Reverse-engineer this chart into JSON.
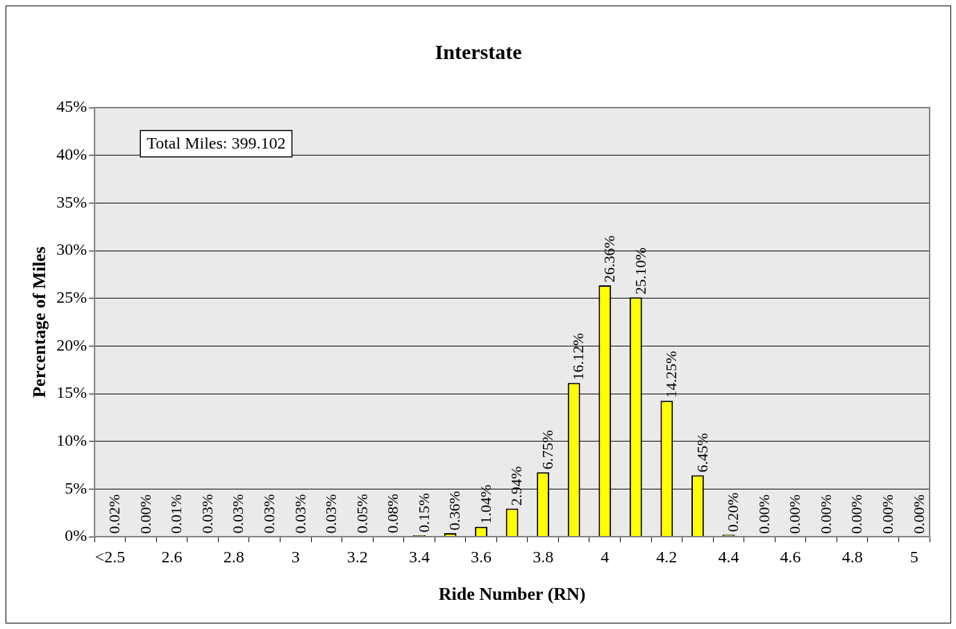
{
  "chart_data": {
    "type": "bar",
    "title": "Interstate",
    "xlabel": "Ride Number (RN)",
    "ylabel": "Percentage of Miles",
    "categories": [
      "<2.5",
      null,
      "2.6",
      null,
      "2.8",
      null,
      "3",
      null,
      "3.2",
      null,
      "3.4",
      null,
      "3.6",
      null,
      "3.8",
      null,
      "4",
      null,
      "4.2",
      null,
      "4.4",
      null,
      "4.6",
      null,
      "4.8",
      null,
      "5"
    ],
    "values": [
      0.02,
      0.0,
      0.01,
      0.03,
      0.03,
      0.03,
      0.03,
      0.03,
      0.05,
      0.08,
      0.15,
      0.36,
      1.04,
      2.94,
      6.75,
      16.12,
      26.36,
      25.1,
      14.25,
      6.45,
      0.2,
      0.0,
      0.0,
      0.0,
      0.0,
      0.0,
      0.0
    ],
    "value_labels": [
      "0.02%",
      "0.00%",
      "0.01%",
      "0.03%",
      "0.03%",
      "0.03%",
      "0.03%",
      "0.03%",
      "0.05%",
      "0.08%",
      "0.15%",
      "0.36%",
      "1.04%",
      "2.94%",
      "6.75%",
      "16.12%",
      "26.36%",
      "25.10%",
      "14.25%",
      "6.45%",
      "0.20%",
      "0.00%",
      "0.00%",
      "0.00%",
      "0.00%",
      "0.00%",
      "0.00%"
    ],
    "color": "#ffff00",
    "ylim": [
      0,
      45
    ],
    "yticks": [
      {
        "value": 0,
        "label": "0%"
      },
      {
        "value": 5,
        "label": "5%"
      },
      {
        "value": 10,
        "label": "10%"
      },
      {
        "value": 15,
        "label": "15%"
      },
      {
        "value": 20,
        "label": "20%"
      },
      {
        "value": 25,
        "label": "25%"
      },
      {
        "value": 30,
        "label": "30%"
      },
      {
        "value": 35,
        "label": "35%"
      },
      {
        "value": 40,
        "label": "40%"
      },
      {
        "value": 45,
        "label": "45%"
      }
    ],
    "grid": "y",
    "legend": false,
    "annotations": [
      "Total Miles: 399.102"
    ]
  }
}
